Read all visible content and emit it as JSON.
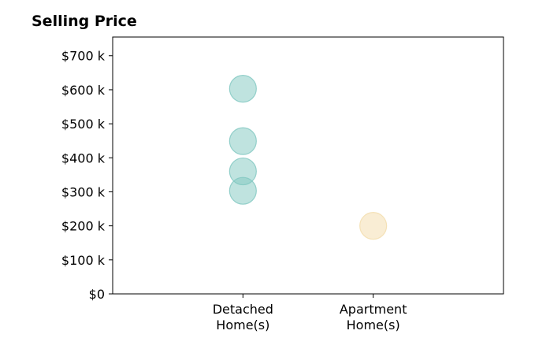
{
  "chart_data": {
    "type": "scatter",
    "title": "Selling Price",
    "xlabel": "",
    "ylabel": "",
    "categories": [
      [
        "Detached",
        "Home(s)"
      ],
      [
        "Apartment",
        "Home(s)"
      ]
    ],
    "y_ticks": [
      {
        "value": 0,
        "label": "$0"
      },
      {
        "value": 100000,
        "label": "$100 k"
      },
      {
        "value": 200000,
        "label": "$200 k"
      },
      {
        "value": 300000,
        "label": "$300 k"
      },
      {
        "value": 400000,
        "label": "$400 k"
      },
      {
        "value": 500000,
        "label": "$500 k"
      },
      {
        "value": 600000,
        "label": "$600 k"
      },
      {
        "value": 700000,
        "label": "$700 k"
      }
    ],
    "ylim": [
      0,
      755000
    ],
    "xlim": [
      0,
      3
    ],
    "grid": false,
    "series": [
      {
        "category_index": 0,
        "color": "#7fc7c0",
        "values": [
          603000,
          449000,
          360000,
          303000
        ]
      },
      {
        "category_index": 1,
        "color": "#f3dcaa",
        "values": [
          200000
        ]
      }
    ]
  }
}
